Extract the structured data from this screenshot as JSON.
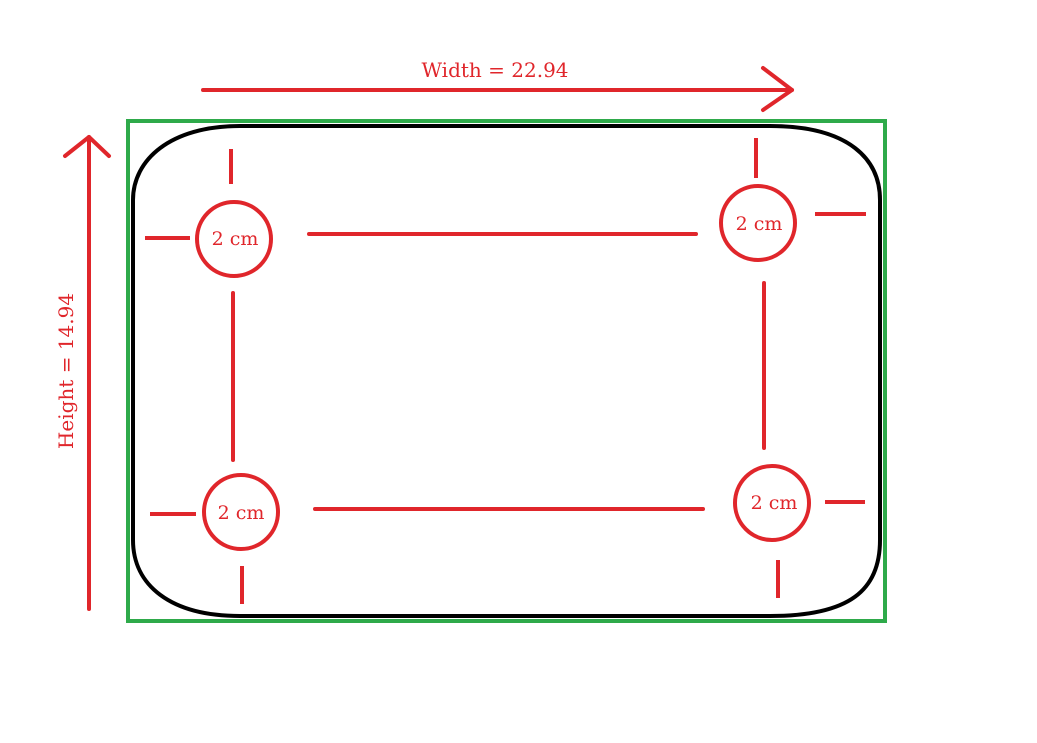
{
  "width_label": "Width = 22.94",
  "height_label": "Height  = 14.94",
  "holes": [
    {
      "id": "top-left",
      "label": "2 cm"
    },
    {
      "id": "top-right",
      "label": "2 cm"
    },
    {
      "id": "bottom-left",
      "label": "2 cm"
    },
    {
      "id": "bottom-right",
      "label": "2 cm"
    }
  ],
  "colors": {
    "annotation": "#e0262b",
    "bounding_box": "#2eaa4a",
    "outline": "#000000",
    "background": "#ffffff"
  }
}
